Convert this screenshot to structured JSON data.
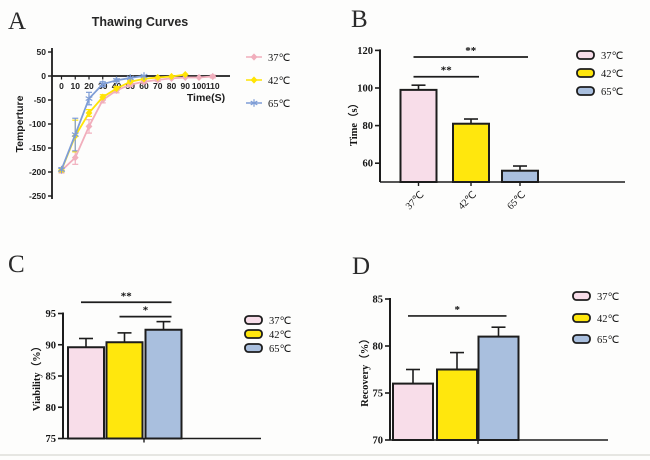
{
  "figure": {
    "background": "#fdfdfc",
    "axis_color": "#1c1c1c",
    "bar_stroke": "#1d1d1d",
    "bar_fills": [
      "#f8dde9",
      "#ffe70d",
      "#a9bfde"
    ],
    "temps": [
      "37℃",
      "42℃",
      "65℃"
    ]
  },
  "chart_data": [
    {
      "id": "a",
      "type": "line",
      "letter": "A",
      "title": "Thawing Curves",
      "xlabel": "Time(S)",
      "ylabel": "Temperture",
      "xlim": [
        0,
        110
      ],
      "ylim": [
        -250,
        50
      ],
      "xticks": [
        0,
        10,
        20,
        30,
        40,
        50,
        60,
        70,
        80,
        90,
        100,
        110
      ],
      "yticks": [
        50,
        0,
        -50,
        -100,
        -150,
        -200,
        -250
      ],
      "legend_position": "right",
      "series": [
        {
          "name": "37℃",
          "color": "#f1aebc",
          "marker": "diamond",
          "points": [
            [
              0,
              -197,
              5
            ],
            [
              10,
              -170,
              14
            ],
            [
              20,
              -105,
              14
            ],
            [
              30,
              -50,
              6
            ],
            [
              40,
              -30,
              5
            ],
            [
              50,
              -18,
              4
            ],
            [
              60,
              -12,
              3
            ],
            [
              70,
              -8,
              3
            ],
            [
              80,
              -5,
              2
            ],
            [
              90,
              -3,
              2
            ],
            [
              100,
              -3,
              2
            ],
            [
              110,
              -1,
              3
            ]
          ]
        },
        {
          "name": "42℃",
          "color": "#ffe405",
          "marker": "diamond",
          "points": [
            [
              0,
              -196,
              4
            ],
            [
              10,
              -125,
              33
            ],
            [
              20,
              -77,
              7
            ],
            [
              30,
              -44,
              5
            ],
            [
              40,
              -26,
              4
            ],
            [
              50,
              -12,
              3
            ],
            [
              60,
              -6,
              2
            ],
            [
              70,
              -3,
              2
            ],
            [
              80,
              -1,
              2
            ],
            [
              90,
              3,
              2
            ]
          ]
        },
        {
          "name": "65℃",
          "color": "#7e9dd6",
          "marker": "star",
          "points": [
            [
              0,
              -195,
              4
            ],
            [
              10,
              -122,
              34
            ],
            [
              20,
              -47,
              13
            ],
            [
              30,
              -17,
              5
            ],
            [
              40,
              -9,
              3
            ],
            [
              50,
              -4,
              2
            ],
            [
              60,
              0,
              2
            ]
          ]
        }
      ]
    },
    {
      "id": "b",
      "type": "bar",
      "letter": "B",
      "ylabel": "Time（s）",
      "categories": [
        "37℃",
        "42℃",
        "65℃"
      ],
      "values": [
        99,
        81,
        56
      ],
      "errors": [
        2.5,
        2.5,
        2.5
      ],
      "ylim": [
        50,
        120
      ],
      "yticks": [
        60,
        80,
        100,
        120
      ],
      "xticklabels_visible": true,
      "significance": [
        {
          "from": 0,
          "to": 1,
          "value": 106,
          "label": "**"
        },
        {
          "from": 0,
          "to": 2,
          "value": 116.5,
          "label": "**"
        }
      ],
      "legend": [
        "37℃",
        "42℃",
        "65℃"
      ]
    },
    {
      "id": "c",
      "type": "bar",
      "letter": "C",
      "ylabel": "Viability（%）",
      "categories": [
        "37℃",
        "42℃",
        "65℃"
      ],
      "values": [
        89.6,
        90.4,
        92.4
      ],
      "errors": [
        1.4,
        1.5,
        1.3
      ],
      "ylim": [
        75,
        95
      ],
      "yticks": [
        75,
        80,
        85,
        90,
        95
      ],
      "xticklabels_visible": false,
      "significance": [
        {
          "from": 1,
          "to": 2,
          "value": 94.5,
          "label": "*"
        },
        {
          "from": 0,
          "to": 2,
          "value": 96.8,
          "label": "**"
        }
      ],
      "legend": [
        "37℃",
        "42℃",
        "65℃"
      ]
    },
    {
      "id": "d",
      "type": "bar",
      "letter": "D",
      "ylabel": "Recovery（%）",
      "categories": [
        "37℃",
        "42℃",
        "65℃"
      ],
      "values": [
        76,
        77.5,
        81
      ],
      "errors": [
        1.5,
        1.8,
        1.0
      ],
      "ylim": [
        70,
        85
      ],
      "yticks": [
        70,
        75,
        80,
        85
      ],
      "xticklabels_visible": false,
      "significance": [
        {
          "from": 0,
          "to": 2,
          "value": 83.2,
          "label": "*"
        }
      ],
      "legend": [
        "37℃",
        "42℃",
        "65℃"
      ]
    }
  ]
}
